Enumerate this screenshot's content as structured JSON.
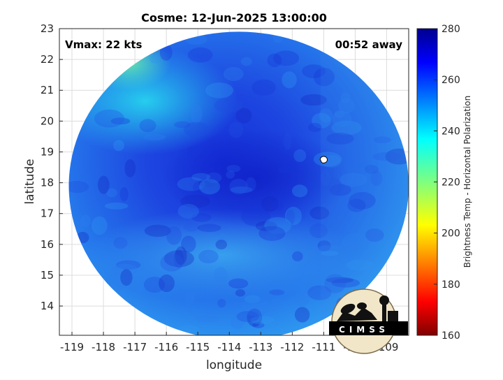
{
  "chart_data": {
    "type": "heatmap",
    "title": "Cosme: 12-Jun-2025 13:00:00",
    "xlabel": "longitude",
    "ylabel": "latitude",
    "xlim": [
      -119.4,
      -108.3
    ],
    "ylim": [
      13.05,
      23.0
    ],
    "xticks": [
      -119,
      -118,
      -117,
      -116,
      -115,
      -114,
      -113,
      -112,
      -111,
      -110,
      -109
    ],
    "yticks": [
      14,
      15,
      16,
      17,
      18,
      19,
      20,
      21,
      22,
      23
    ],
    "grid": true,
    "annotations": {
      "top_left": "Vmax: 22 kts",
      "top_right": "00:52 away"
    },
    "colorbar": {
      "label": "Brightness Temp - Horizontal Polarization",
      "range": [
        160,
        280
      ],
      "ticks": [
        280,
        260,
        240,
        220,
        200,
        180,
        160
      ],
      "colormap": "jet"
    },
    "swath": {
      "center_lon": -113.7,
      "center_lat": 17.9,
      "radius_lon": 5.4,
      "radius_lat": 5.0,
      "value_range_approx": [
        235,
        268
      ]
    },
    "storm_center": {
      "lon": -111.0,
      "lat": 18.75
    },
    "logo_text": "CIMSS"
  }
}
